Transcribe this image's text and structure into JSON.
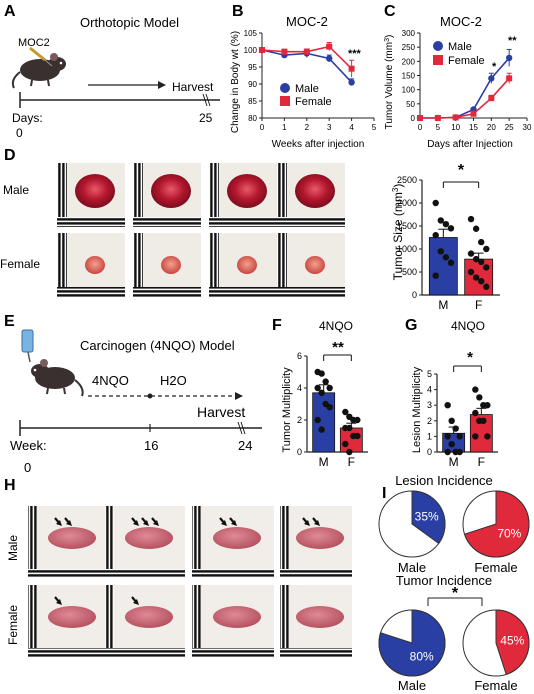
{
  "panels": {
    "A": {
      "letter": "A",
      "title": "Orthotopic Model",
      "cell_line": "MOC2",
      "days_label": "Days:",
      "day_start": "0",
      "harvest": "Harvest",
      "day_end": "25"
    },
    "B": {
      "letter": "B",
      "title": "MOC-2",
      "xlabel": "Weeks after injection",
      "ylabel": "Change in Body wt (%)",
      "significance": "***"
    },
    "C": {
      "letter": "C",
      "title": "MOC-2",
      "xlabel": "Days after Injection",
      "ylabel_main": "Tumor Volume (mm",
      "ylabel_sup": "3",
      "ylabel_close": ")",
      "sig1": "*",
      "sig2": "**"
    },
    "D": {
      "letter": "D",
      "row_male": "Male",
      "row_female": "Female",
      "ylabel_main": "Tumor Size (mm",
      "ylabel_sup": "3",
      "ylabel_close": ")",
      "significance": "*"
    },
    "E": {
      "letter": "E",
      "title": "Carcinogen (4NQO) Model",
      "phase1": "4NQO",
      "phase2": "H2O",
      "week_label": "Week:",
      "week_start": "0",
      "week_mid": "16",
      "harvest": "Harvest",
      "week_end": "24"
    },
    "F": {
      "letter": "F",
      "title": "4NQO",
      "ylabel": "Tumor Multiplicity",
      "significance": "**"
    },
    "G": {
      "letter": "G",
      "title": "4NQO",
      "ylabel": "Lesion Multiplicity",
      "significance": "*"
    },
    "H": {
      "letter": "H",
      "row_male": "Male",
      "row_female": "Female"
    },
    "I": {
      "letter": "I",
      "lesion_title": "Lesion Incidence",
      "tumor_title": "Tumor Incidence",
      "significance": "*",
      "male_label": "Male",
      "female_label": "Female"
    }
  },
  "legend": {
    "male": "Male",
    "female": "Female"
  },
  "colors": {
    "male": "#2a3fa3",
    "female": "#e02a3b",
    "harvest_line": "#333333"
  },
  "chart_data": [
    {
      "id": "B",
      "type": "line",
      "title": "MOC-2",
      "xlabel": "Weeks after injection",
      "ylabel": "Change in Body wt (%)",
      "x": [
        0,
        1,
        2,
        3,
        4
      ],
      "xlim": [
        0,
        5
      ],
      "ylim": [
        80,
        105
      ],
      "xticks": [
        "0",
        "1",
        "2",
        "3",
        "4",
        "5"
      ],
      "yticks": [
        "80",
        "85",
        "90",
        "95",
        "100",
        "105"
      ],
      "series": [
        {
          "name": "Male",
          "values": [
            100,
            98.5,
            99,
            97.5,
            90.5
          ],
          "err": [
            0.6,
            0.8,
            1.2,
            1.0,
            1.0
          ]
        },
        {
          "name": "Female",
          "values": [
            100,
            99.5,
            99.5,
            101,
            94.5
          ],
          "err": [
            0.6,
            0.7,
            0.8,
            1.2,
            2.5
          ]
        }
      ],
      "legend": "lower-left"
    },
    {
      "id": "C",
      "type": "line",
      "title": "MOC-2",
      "xlabel": "Days after Injection",
      "ylabel": "Tumor Volume (mm3)",
      "x": [
        0,
        5,
        10,
        15,
        20,
        25
      ],
      "xlim": [
        0,
        30
      ],
      "ylim": [
        0,
        300
      ],
      "xticks": [
        "0",
        "5",
        "10",
        "15",
        "20",
        "25",
        "30"
      ],
      "yticks": [
        "0",
        "50",
        "100",
        "150",
        "200",
        "250",
        "300"
      ],
      "series": [
        {
          "name": "Male",
          "values": [
            0,
            0,
            2,
            30,
            140,
            212
          ],
          "err": [
            0,
            0,
            1,
            5,
            18,
            30
          ]
        },
        {
          "name": "Female",
          "values": [
            0,
            0,
            2,
            15,
            70,
            140
          ],
          "err": [
            0,
            0,
            1,
            3,
            10,
            18
          ]
        }
      ],
      "legend": "top-left"
    },
    {
      "id": "D",
      "type": "bar",
      "categories": [
        "M",
        "F"
      ],
      "values": [
        1250,
        780
      ],
      "err": [
        180,
        130
      ],
      "ylim": [
        0,
        2500
      ],
      "yticks": [
        "0",
        "500",
        "1000",
        "1500",
        "2000",
        "2500"
      ],
      "points": [
        [
          2000,
          1620,
          1540,
          1450,
          1300,
          950,
          820,
          700,
          420
        ],
        [
          1650,
          1440,
          1150,
          1000,
          900,
          780,
          720,
          600,
          500,
          380,
          300,
          180
        ]
      ]
    },
    {
      "id": "F",
      "type": "bar",
      "title": "4NQO",
      "ylabel": "Tumor Multiplicity",
      "categories": [
        "M",
        "F"
      ],
      "values": [
        3.7,
        1.5
      ],
      "err": [
        0.5,
        0.3
      ],
      "ylim": [
        0,
        6
      ],
      "yticks": [
        "0",
        "2",
        "4",
        "6"
      ],
      "points": [
        [
          5,
          4.9,
          4.4,
          4,
          4,
          3.7,
          3,
          2.8,
          2,
          1.4
        ],
        [
          2.5,
          2.2,
          2,
          2,
          1.5,
          1.5,
          1,
          1,
          0.5,
          0
        ]
      ]
    },
    {
      "id": "G",
      "type": "bar",
      "title": "4NQO",
      "ylabel": "Lesion Multiplicity",
      "categories": [
        "M",
        "F"
      ],
      "values": [
        1.2,
        2.4
      ],
      "err": [
        0.4,
        0.4
      ],
      "ylim": [
        0,
        5
      ],
      "yticks": [
        "0",
        "1",
        "2",
        "3",
        "4",
        "5"
      ],
      "points": [
        [
          3,
          2,
          1.5,
          1,
          1,
          0.5,
          0,
          0,
          0
        ],
        [
          4,
          3.5,
          3,
          3,
          2.5,
          2,
          2,
          1,
          1
        ]
      ]
    },
    {
      "id": "I-lesion",
      "type": "pie",
      "title": "Lesion Incidence",
      "slices": [
        {
          "name": "Male",
          "value": 35,
          "label": "35%"
        },
        {
          "name": "Female",
          "value": 70,
          "label": "70%"
        }
      ]
    },
    {
      "id": "I-tumor",
      "type": "pie",
      "title": "Tumor Incidence",
      "slices": [
        {
          "name": "Male",
          "value": 80,
          "label": "80%"
        },
        {
          "name": "Female",
          "value": 45,
          "label": "45%"
        }
      ]
    }
  ]
}
